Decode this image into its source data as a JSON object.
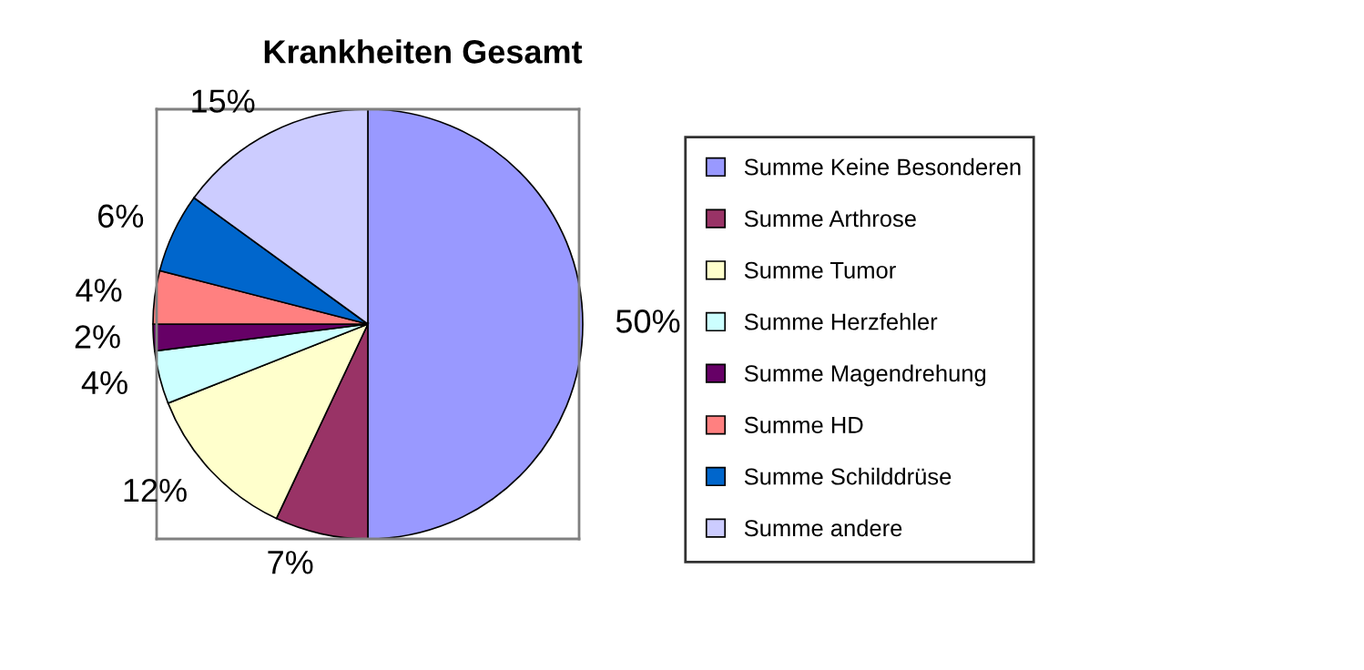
{
  "chart_data": {
    "type": "pie",
    "title": "Krankheiten Gesamt",
    "categories": [
      "Summe Keine Besonderen",
      "Summe Arthrose",
      "Summe Tumor",
      "Summe Herzfehler",
      "Summe Magendrehung",
      "Summe HD",
      "Summe Schilddrüse",
      "Summe andere"
    ],
    "values": [
      50,
      7,
      12,
      4,
      2,
      4,
      6,
      15
    ],
    "value_labels": [
      "50%",
      "7%",
      "12%",
      "4%",
      "2%",
      "4%",
      "6%",
      "15%"
    ],
    "colors": [
      "#9999ff",
      "#993366",
      "#ffffcc",
      "#ccffff",
      "#660066",
      "#ff8080",
      "#0066cc",
      "#ccccff"
    ],
    "legend": "right"
  }
}
